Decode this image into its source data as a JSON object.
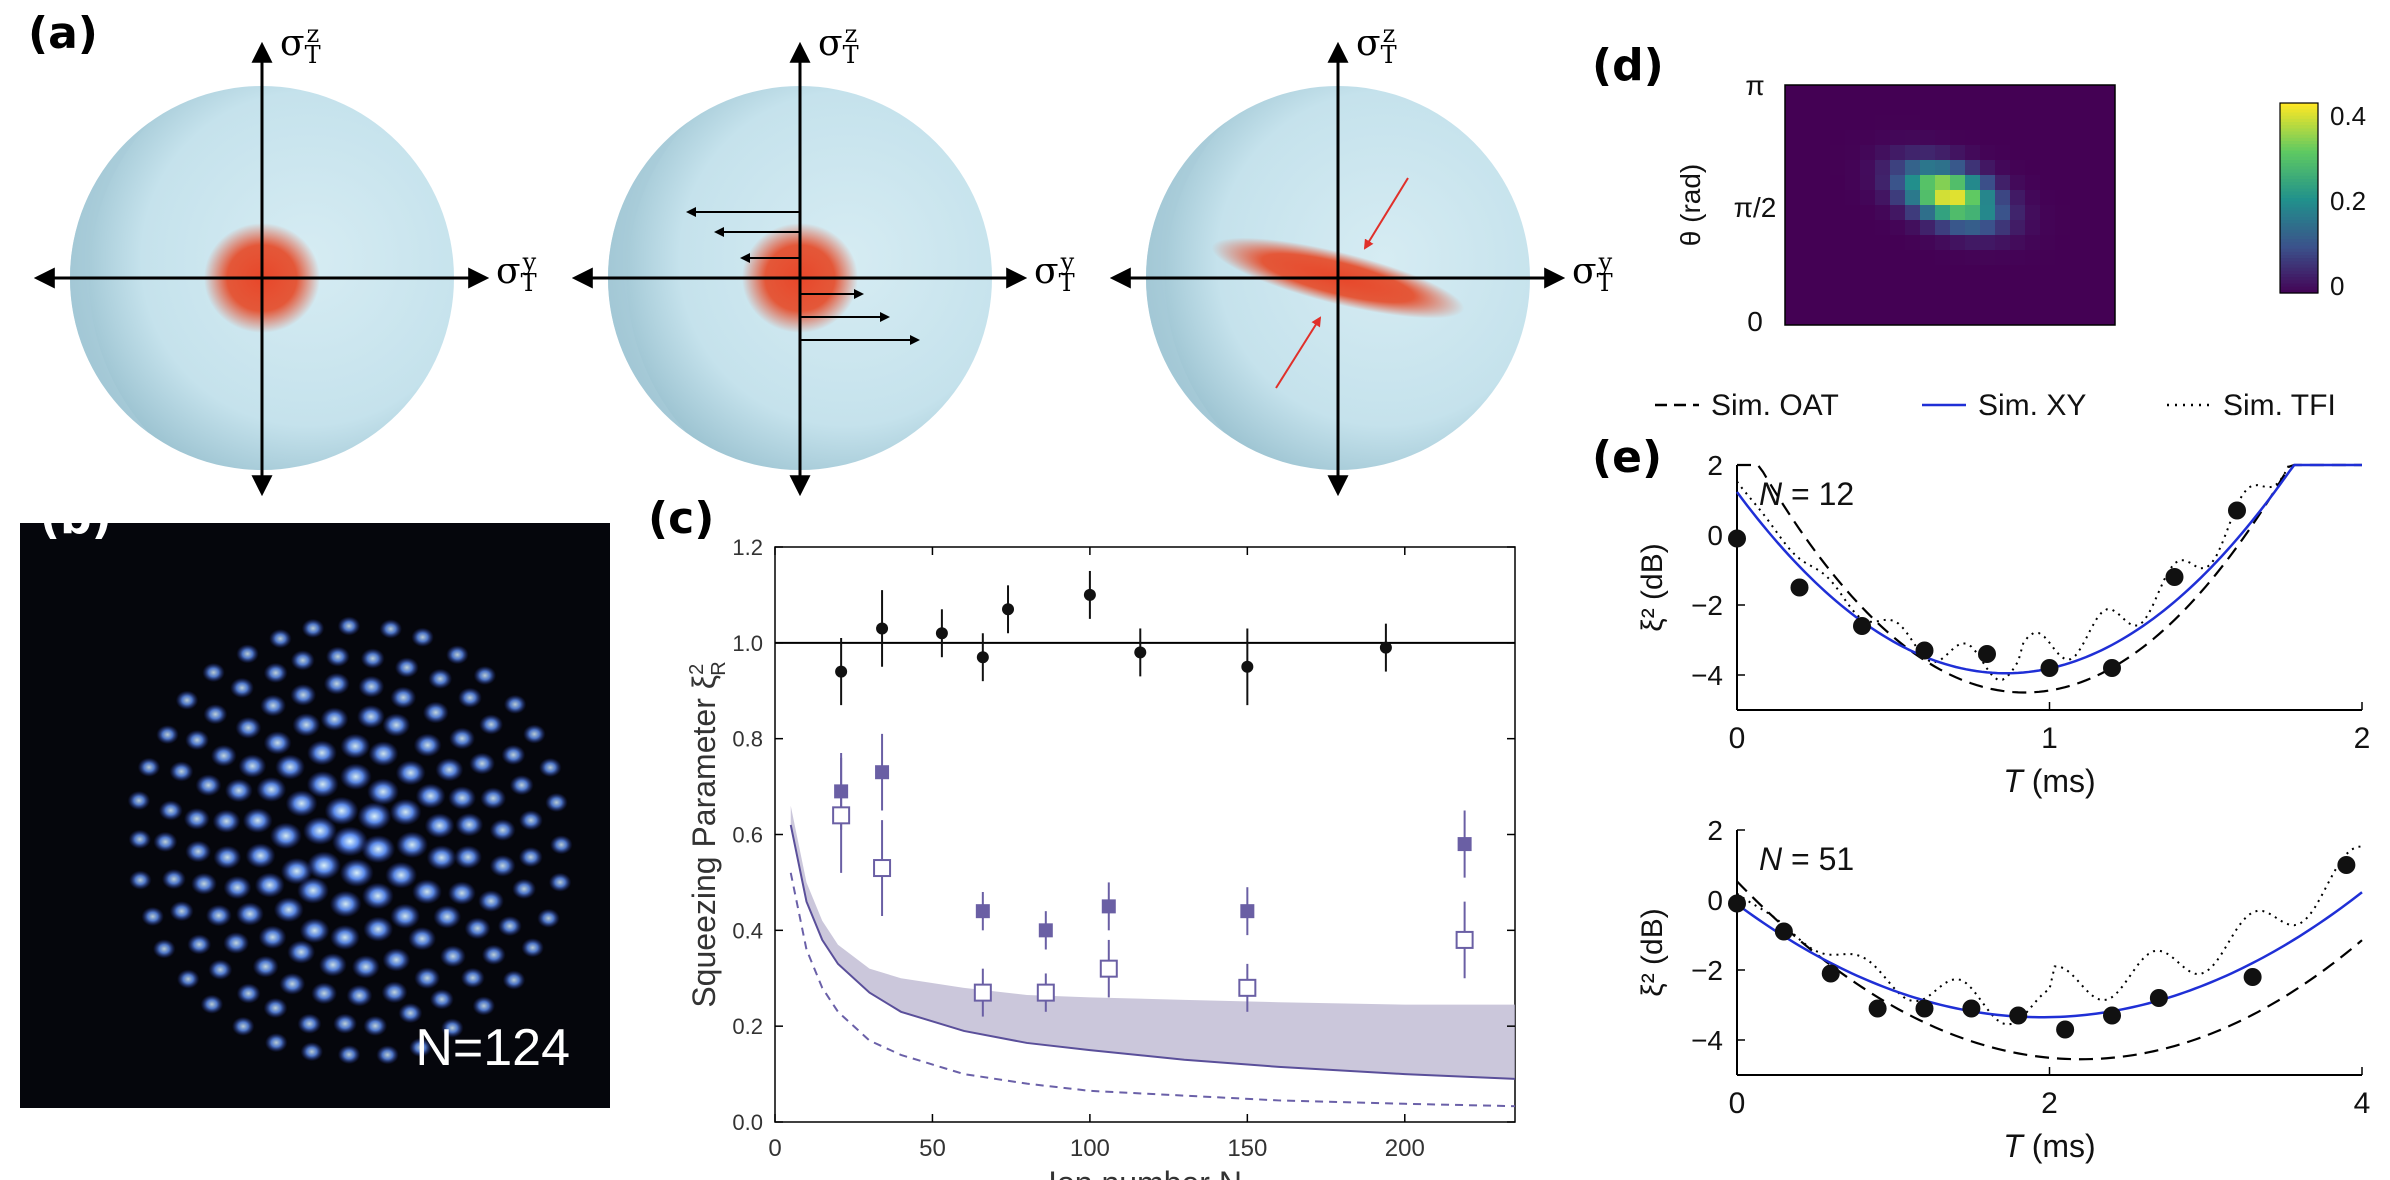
{
  "panels": {
    "a": {
      "label": "(a)",
      "axis_horizontal": "σ",
      "axis_horizontal_sup": "y",
      "axis_horizontal_sub": "T",
      "axis_vertical": "σ",
      "axis_vertical_sup": "z",
      "axis_vertical_sub": "T"
    },
    "b": {
      "label": "(b)",
      "caption": "N=124"
    },
    "c": {
      "label": "(c)",
      "chart_data": {
        "type": "scatter",
        "xlabel": "Ion number N",
        "ylabel": "Squeezing Parameter ξ",
        "ylabel_sub": "R",
        "ylabel_sup": "2",
        "xlim": [
          0,
          235
        ],
        "ylim": [
          0.0,
          1.2
        ],
        "xticks": [
          "0",
          "50",
          "100",
          "150",
          "200"
        ],
        "yticks": [
          "0.0",
          "0.2",
          "0.4",
          "0.6",
          "0.8",
          "1.0",
          "1.2"
        ],
        "reference_line": 1.0,
        "series": [
          {
            "marker": "black-circle",
            "x": [
              21,
              34,
              53,
              66,
              74,
              100,
              116,
              150,
              194
            ],
            "y": [
              0.94,
              1.03,
              1.02,
              0.97,
              1.07,
              1.1,
              0.98,
              0.95,
              0.99
            ],
            "err": [
              0.07,
              0.08,
              0.05,
              0.05,
              0.05,
              0.05,
              0.05,
              0.08,
              0.05
            ]
          },
          {
            "marker": "filled-square",
            "x": [
              21,
              34,
              66,
              86,
              106,
              150,
              219
            ],
            "y": [
              0.69,
              0.73,
              0.44,
              0.4,
              0.45,
              0.44,
              0.58
            ],
            "err": [
              0.08,
              0.08,
              0.04,
              0.04,
              0.05,
              0.05,
              0.07
            ]
          },
          {
            "marker": "open-square",
            "x": [
              21,
              34,
              66,
              86,
              106,
              150,
              219
            ],
            "y": [
              0.64,
              0.53,
              0.27,
              0.27,
              0.32,
              0.28,
              0.38
            ],
            "err": [
              0.12,
              0.1,
              0.05,
              0.04,
              0.06,
              0.05,
              0.08
            ]
          }
        ],
        "band": {
          "x": [
            5,
            10,
            15,
            20,
            30,
            40,
            60,
            80,
            100,
            130,
            160,
            200,
            235
          ],
          "lower": [
            0.62,
            0.46,
            0.38,
            0.33,
            0.27,
            0.23,
            0.19,
            0.165,
            0.15,
            0.13,
            0.115,
            0.1,
            0.09
          ],
          "upper": [
            0.66,
            0.5,
            0.42,
            0.37,
            0.32,
            0.3,
            0.28,
            0.265,
            0.26,
            0.255,
            0.25,
            0.245,
            0.245
          ]
        },
        "dashed_curve": {
          "x": [
            5,
            10,
            15,
            20,
            30,
            40,
            60,
            80,
            100,
            130,
            160,
            200,
            235
          ],
          "y": [
            0.52,
            0.36,
            0.28,
            0.23,
            0.17,
            0.14,
            0.1,
            0.08,
            0.065,
            0.055,
            0.045,
            0.038,
            0.033
          ]
        }
      }
    },
    "d": {
      "label": "(d)",
      "ylabel": "θ (rad)",
      "yticks": [
        "π",
        "π/2",
        "0"
      ],
      "colorbar_ticks": [
        "0.4",
        "0.2",
        "0"
      ],
      "colormap": [
        "#440154",
        "#3b528b",
        "#21918c",
        "#5ec962",
        "#fde725"
      ]
    },
    "e": {
      "label": "(e)",
      "legend": [
        {
          "name": "Sim. OAT",
          "style": "dashed",
          "color": "#000000"
        },
        {
          "name": "Sim. XY",
          "style": "solid",
          "color": "#1f2fd6"
        },
        {
          "name": "Sim. TFI",
          "style": "dotted",
          "color": "#000000"
        }
      ],
      "chart_data": [
        {
          "type": "line",
          "annotation": "N = 12",
          "xlabel": "T (ms)",
          "ylabel": "ξ² (dB)",
          "xlim": [
            0,
            2
          ],
          "ylim": [
            -5,
            2
          ],
          "xticks": [
            "0",
            "1",
            "2"
          ],
          "yticks": [
            "2",
            "0",
            "−2",
            "−4"
          ],
          "points": {
            "x": [
              0,
              0.2,
              0.4,
              0.6,
              0.8,
              1.0,
              1.2,
              1.4,
              1.6
            ],
            "y": [
              -0.1,
              -1.5,
              -2.6,
              -3.3,
              -3.4,
              -3.8,
              -3.8,
              -1.2,
              0.7
            ]
          }
        },
        {
          "type": "line",
          "annotation": "N = 51",
          "xlabel": "T (ms)",
          "ylabel": "ξ² (dB)",
          "xlim": [
            0,
            4
          ],
          "ylim": [
            -5,
            2
          ],
          "xticks": [
            "0",
            "2",
            "4"
          ],
          "yticks": [
            "2",
            "0",
            "−2",
            "−4"
          ],
          "points": {
            "x": [
              0,
              0.3,
              0.6,
              0.9,
              1.2,
              1.5,
              1.8,
              2.1,
              2.4,
              2.7,
              3.3,
              3.9
            ],
            "y": [
              -0.1,
              -0.9,
              -2.1,
              -3.1,
              -3.1,
              -3.1,
              -3.3,
              -3.7,
              -3.3,
              -2.8,
              -2.2,
              1.0
            ]
          }
        }
      ]
    }
  }
}
